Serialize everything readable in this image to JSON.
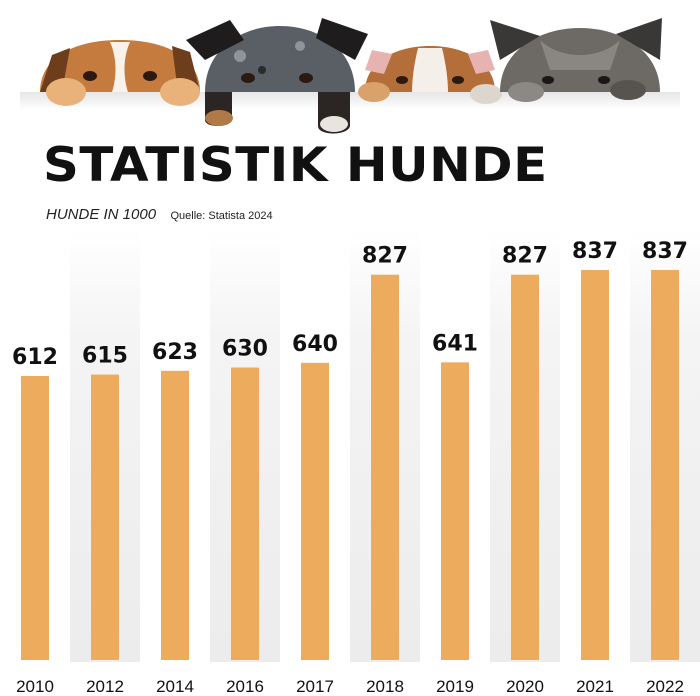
{
  "header": {
    "title": "STATISTIK HUNDE",
    "subtitle": "HUNDE IN 1000",
    "source": "Quelle: Statista 2024"
  },
  "colors": {
    "bar": "#EDAB5E",
    "stripe": "#EFEFEF",
    "text": "#111111"
  },
  "chart_data": {
    "type": "bar",
    "categories": [
      "2010",
      "2012",
      "2014",
      "2016",
      "2017",
      "2018",
      "2019",
      "2020",
      "2021",
      "2022"
    ],
    "values": [
      612,
      615,
      623,
      630,
      640,
      827,
      641,
      827,
      837,
      837
    ],
    "data_labels": [
      "612",
      "615",
      "623",
      "630",
      "640",
      "827",
      "641",
      "827",
      "837",
      "837"
    ],
    "title": "STATISTIK HUNDE",
    "subtitle": "HUNDE IN 1000",
    "source": "Quelle: Statista 2024",
    "grid": false,
    "legend": "none",
    "value_axis_shown": false
  }
}
